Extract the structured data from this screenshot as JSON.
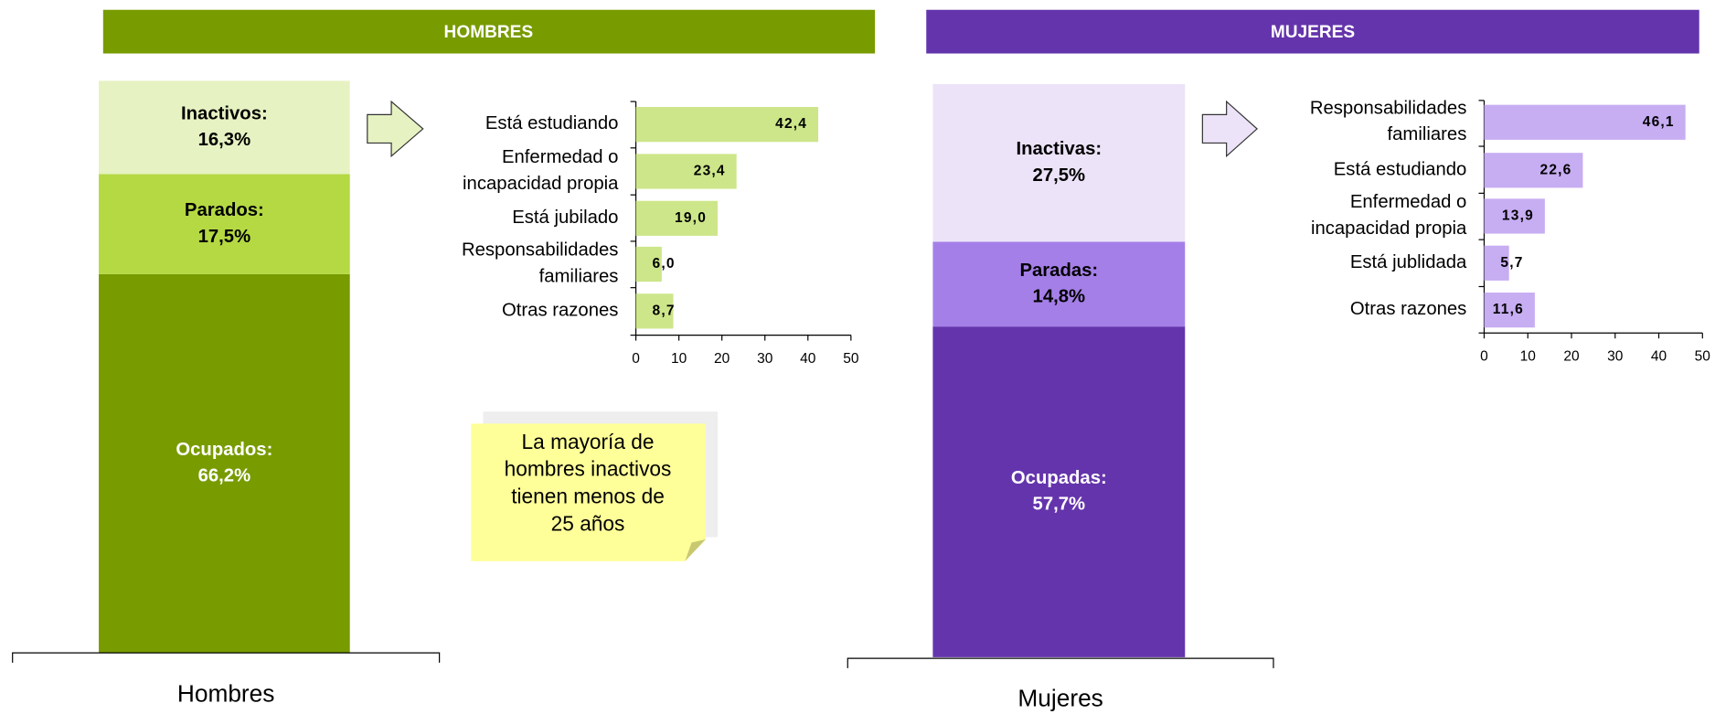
{
  "headers": [
    "HOMBRES",
    "MUJERES"
  ],
  "note": {
    "lines": [
      "La mayoría de",
      "hombres inactivos",
      "tienen menos de",
      "25 años"
    ]
  },
  "chart_data": [
    {
      "type": "stacked",
      "categories": [
        "Hombres"
      ],
      "series": [
        {
          "name": "Ocupados:",
          "values": [
            66.2
          ],
          "value_labels": [
            "66,2%"
          ],
          "color": "#789b00"
        },
        {
          "name": "Parados:",
          "values": [
            17.5
          ],
          "value_labels": [
            "17,5%"
          ],
          "color": "#b5d943"
        },
        {
          "name": "Inactivos:",
          "values": [
            16.3
          ],
          "value_labels": [
            "16,3%"
          ],
          "color": "#e6f2c2"
        }
      ]
    },
    {
      "type": "hbar",
      "categories": [
        "Está estudiando",
        "Enfermedad o incapacidad propia",
        "Está jubilado",
        "Responsabilidades familiares",
        "Otras razones"
      ],
      "values": [
        42.4,
        23.4,
        19.0,
        6.0,
        8.7
      ],
      "value_labels": [
        "42,4",
        "23,4",
        "19,0",
        "6,0",
        "8,7"
      ],
      "color": "#cde68a",
      "xlim": [
        0,
        50
      ],
      "xticks": [
        0,
        10,
        20,
        30,
        40,
        50
      ]
    },
    {
      "type": "stacked",
      "categories": [
        "Mujeres"
      ],
      "series": [
        {
          "name": "Ocupadas:",
          "values": [
            57.7
          ],
          "value_labels": [
            "57,7%"
          ],
          "color": "#6434ac"
        },
        {
          "name": "Paradas:",
          "values": [
            14.8
          ],
          "value_labels": [
            "14,8%"
          ],
          "color": "#a57fe8"
        },
        {
          "name": "Inactivas:",
          "values": [
            27.5
          ],
          "value_labels": [
            "27,5%"
          ],
          "color": "#ece3f8"
        }
      ]
    },
    {
      "type": "hbar",
      "categories": [
        "Responsabilidades familiares",
        "Está estudiando",
        "Enfermedad o incapacidad propia",
        "Está jublidada",
        "Otras razones"
      ],
      "values": [
        46.1,
        22.6,
        13.9,
        5.7,
        11.6
      ],
      "value_labels": [
        "46,1",
        "22,6",
        "13,9",
        "5,7",
        "11,6"
      ],
      "color": "#c7adf2",
      "xlim": [
        0,
        50
      ],
      "xticks": [
        0,
        10,
        20,
        30,
        40,
        50
      ]
    }
  ]
}
